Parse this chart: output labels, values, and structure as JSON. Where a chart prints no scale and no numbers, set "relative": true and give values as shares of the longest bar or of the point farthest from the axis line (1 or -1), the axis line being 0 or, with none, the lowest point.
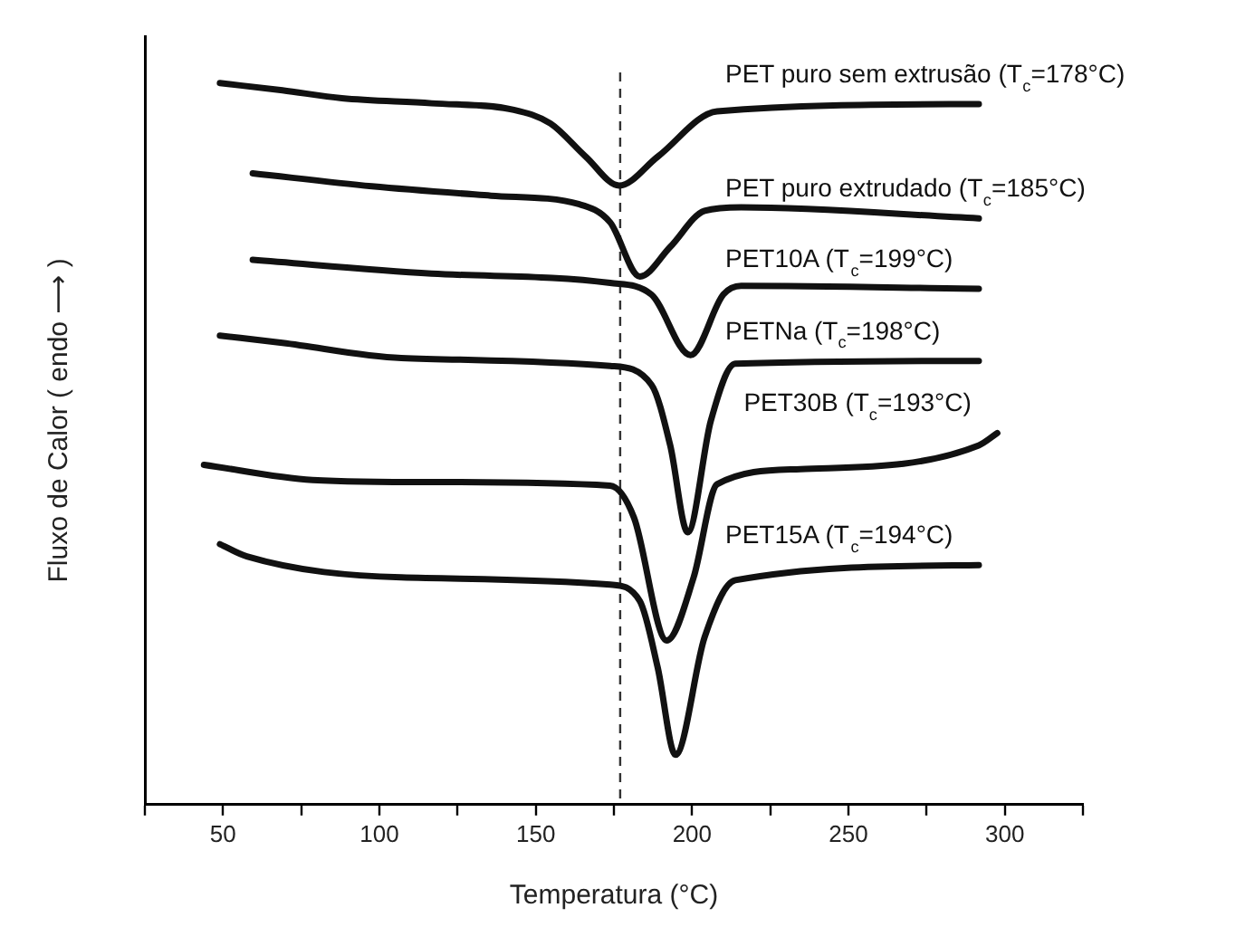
{
  "chart_data": {
    "type": "line",
    "relative": true,
    "xlabel": "Temperatura (°C)",
    "ylabel": "Fluxo de Calor ( endo ⟶ )",
    "xlim": [
      25,
      325
    ],
    "xticks": [
      {
        "value": 25,
        "label": null
      },
      50,
      {
        "value": 75,
        "label": null
      },
      100,
      {
        "value": 125,
        "label": null
      },
      150,
      {
        "value": 175,
        "label": null
      },
      200,
      {
        "value": 225,
        "label": null
      },
      250,
      {
        "value": 275,
        "label": null
      },
      300,
      {
        "value": 325,
        "label": null
      }
    ],
    "grid": false,
    "legend": false,
    "marker": "none",
    "line_style": "solid",
    "ref_lines": [
      {
        "axis": "x",
        "value": 177,
        "color": "#333333",
        "line_style": "dashed"
      }
    ],
    "series": [
      {
        "name": "PET puro sem extrusão (T$_{c}$=178°C)",
        "color": "#111111",
        "x": [
          49,
          69,
          88,
          116.7,
          143,
          154.7,
          166,
          176.7,
          189,
          208,
          291.7
        ],
        "values": [
          1,
          0.99,
          0.979,
          0.972,
          0.963,
          0.944,
          0.898,
          0.858,
          0.898,
          0.961,
          0.971
        ]
      },
      {
        "name": "PET puro extrudado (T$_{c}$=185°C)",
        "color": "#111111",
        "x": [
          59.5,
          97.6,
          135.7,
          164,
          173.8,
          183.3,
          193,
          204,
          215.7,
          291.7
        ],
        "values": [
          0.875,
          0.857,
          0.844,
          0.832,
          0.807,
          0.732,
          0.773,
          0.823,
          0.828,
          0.8125
        ]
      },
      {
        "name": "PET10A (T$_{c}$=199°C)",
        "color": "#111111",
        "x": [
          59.5,
          116.7,
          173.8,
          187,
          199.5,
          210,
          215.7,
          291.7
        ],
        "values": [
          0.755,
          0.736,
          0.723,
          0.707,
          0.623,
          0.707,
          0.719,
          0.715
        ]
      },
      {
        "name": "PETNa (T$_{c}$=198°C)",
        "color": "#111111",
        "x": [
          49,
          69,
          107,
          173.8,
          187,
          193,
          198.6,
          206,
          213.8,
          291.7
        ],
        "values": [
          0.65,
          0.64,
          0.619,
          0.608,
          0.582,
          0.498,
          0.3775,
          0.532,
          0.611,
          0.615
        ]
      },
      {
        "name": "PET30B (T$_{c}$=193°C)",
        "color": "#111111",
        "x": [
          43.9,
          78.6,
          116.7,
          173.8,
          181.4,
          191.9,
          200.5,
          208,
          234.7,
          291.7,
          297.6
        ],
        "values": [
          0.471,
          0.45,
          0.447,
          0.442,
          0.398,
          0.2275,
          0.315,
          0.444,
          0.465,
          0.498,
          0.515
        ]
      },
      {
        "name": "PET15A (T$_{c}$=194°C)",
        "color": "#111111",
        "x": [
          49,
          57.6,
          107,
          173.8,
          183.3,
          189,
          194.7,
          204,
          213.8,
          291.7
        ],
        "values": [
          0.361,
          0.344,
          0.315,
          0.305,
          0.282,
          0.19,
          0.069,
          0.232,
          0.311,
          0.332
        ]
      }
    ]
  }
}
